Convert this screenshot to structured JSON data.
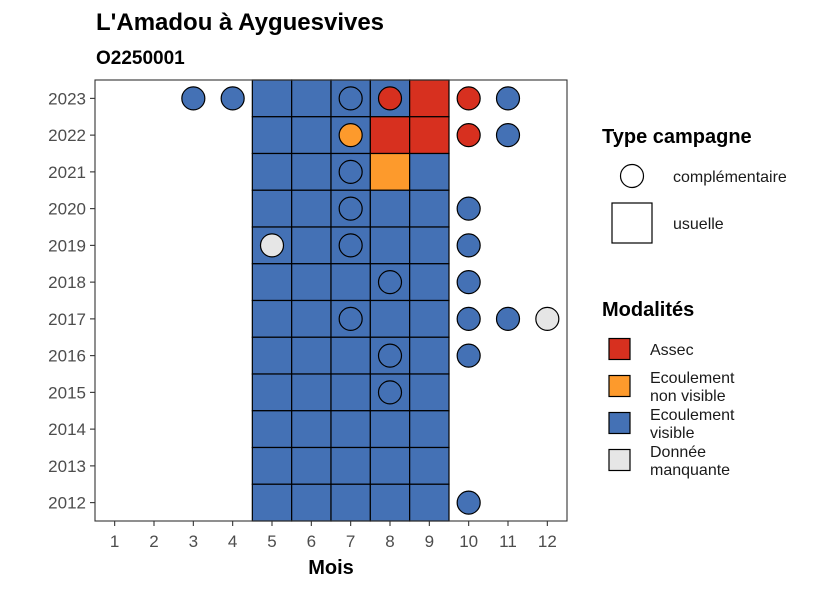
{
  "chart_data": {
    "type": "heatmap",
    "title": "L'Amadou à Ayguesvives",
    "subtitle": "O2250001",
    "xlabel": "Mois",
    "ylabel": "",
    "x_ticks": [
      "1",
      "2",
      "3",
      "4",
      "5",
      "6",
      "7",
      "8",
      "9",
      "10",
      "11",
      "12"
    ],
    "y_ticks": [
      "2012",
      "2013",
      "2014",
      "2015",
      "2016",
      "2017",
      "2018",
      "2019",
      "2020",
      "2021",
      "2022",
      "2023"
    ],
    "legend_shape_title": "Type campagne",
    "legend_shapes": [
      {
        "shape": "circle",
        "label": "complémentaire"
      },
      {
        "shape": "square",
        "label": "usuelle"
      }
    ],
    "legend_fill_title": "Modalités",
    "categories": [
      {
        "key": "assec",
        "lines": [
          "Assec"
        ],
        "color": "#d7301f"
      },
      {
        "key": "ecnv",
        "lines": [
          "Ecoulement",
          "non visible"
        ],
        "color": "#fd9a2c"
      },
      {
        "key": "ecv",
        "lines": [
          "Ecoulement",
          "visible"
        ],
        "color": "#4471b5"
      },
      {
        "key": "nd",
        "lines": [
          "Donnée",
          "manquante"
        ],
        "color": "#e6e6e6"
      }
    ],
    "usual": [
      {
        "year": 2023,
        "values": [
          "ecv",
          "ecv",
          "ecv",
          "ecv",
          "assec"
        ]
      },
      {
        "year": 2022,
        "values": [
          "ecv",
          "ecv",
          "ecv",
          "assec",
          "assec"
        ]
      },
      {
        "year": 2021,
        "values": [
          "ecv",
          "ecv",
          "ecv",
          "ecnv",
          "ecv"
        ]
      },
      {
        "year": 2020,
        "values": [
          "ecv",
          "ecv",
          "ecv",
          "ecv",
          "ecv"
        ]
      },
      {
        "year": 2019,
        "values": [
          "ecv",
          "ecv",
          "ecv",
          "ecv",
          "ecv"
        ]
      },
      {
        "year": 2018,
        "values": [
          "ecv",
          "ecv",
          "ecv",
          "ecv",
          "ecv"
        ]
      },
      {
        "year": 2017,
        "values": [
          "ecv",
          "ecv",
          "ecv",
          "ecv",
          "ecv"
        ]
      },
      {
        "year": 2016,
        "values": [
          "ecv",
          "ecv",
          "ecv",
          "ecv",
          "ecv"
        ]
      },
      {
        "year": 2015,
        "values": [
          "ecv",
          "ecv",
          "ecv",
          "ecv",
          "ecv"
        ]
      },
      {
        "year": 2014,
        "values": [
          "ecv",
          "ecv",
          "ecv",
          "ecv",
          "ecv"
        ]
      },
      {
        "year": 2013,
        "values": [
          "ecv",
          "ecv",
          "ecv",
          "ecv",
          "ecv"
        ]
      },
      {
        "year": 2012,
        "values": [
          "ecv",
          "ecv",
          "ecv",
          "ecv",
          "ecv"
        ]
      }
    ],
    "usual_months": [
      5,
      6,
      7,
      8,
      9
    ],
    "complementary": [
      {
        "year": 2023,
        "month": 3,
        "value": "ecv"
      },
      {
        "year": 2023,
        "month": 4,
        "value": "ecv"
      },
      {
        "year": 2023,
        "month": 7,
        "value": "ecv"
      },
      {
        "year": 2023,
        "month": 8,
        "value": "assec"
      },
      {
        "year": 2023,
        "month": 10,
        "value": "assec"
      },
      {
        "year": 2023,
        "month": 11,
        "value": "ecv"
      },
      {
        "year": 2022,
        "month": 7,
        "value": "ecnv"
      },
      {
        "year": 2022,
        "month": 10,
        "value": "assec"
      },
      {
        "year": 2022,
        "month": 11,
        "value": "ecv"
      },
      {
        "year": 2021,
        "month": 7,
        "value": "ecv"
      },
      {
        "year": 2020,
        "month": 7,
        "value": "ecv"
      },
      {
        "year": 2020,
        "month": 10,
        "value": "ecv"
      },
      {
        "year": 2019,
        "month": 5,
        "value": "nd"
      },
      {
        "year": 2019,
        "month": 7,
        "value": "ecv"
      },
      {
        "year": 2019,
        "month": 10,
        "value": "ecv"
      },
      {
        "year": 2018,
        "month": 8,
        "value": "ecv"
      },
      {
        "year": 2018,
        "month": 10,
        "value": "ecv"
      },
      {
        "year": 2017,
        "month": 7,
        "value": "ecv"
      },
      {
        "year": 2017,
        "month": 10,
        "value": "ecv"
      },
      {
        "year": 2017,
        "month": 11,
        "value": "ecv"
      },
      {
        "year": 2017,
        "month": 12,
        "value": "nd"
      },
      {
        "year": 2016,
        "month": 8,
        "value": "ecv"
      },
      {
        "year": 2016,
        "month": 10,
        "value": "ecv"
      },
      {
        "year": 2015,
        "month": 8,
        "value": "ecv"
      },
      {
        "year": 2012,
        "month": 10,
        "value": "ecv"
      }
    ]
  }
}
